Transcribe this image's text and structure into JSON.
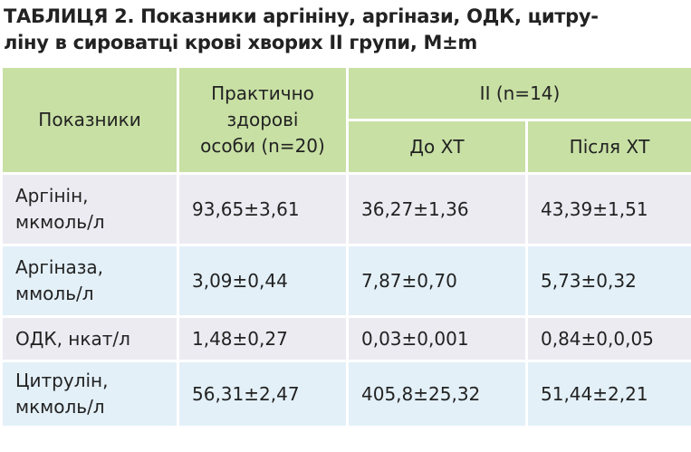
{
  "title": [
    "ТАБЛИЦЯ 2. Показники аргініну, аргінази, ОДК, цитру-",
    "ліну в сироватці крові хворих II групи, M±m"
  ],
  "table": {
    "header": {
      "indicator": "Показники",
      "healthy": [
        "Практично",
        "здорові",
        "особи (n=20)"
      ],
      "group": "II (n=14)",
      "before": "До ХТ",
      "after": "Після ХТ"
    },
    "rows": [
      {
        "label": [
          "Аргінін,",
          "мкмоль/л"
        ],
        "cells": [
          "93,65±3,61",
          "36,27±1,36",
          "43,39±1,51"
        ]
      },
      {
        "label": [
          "Аргіназа,",
          "ммоль/л"
        ],
        "cells": [
          "3,09±0,44",
          "7,87±0,70",
          "5,73±0,32"
        ]
      },
      {
        "label": [
          "ОДК, нкат/л"
        ],
        "cells": [
          "1,48±0,27",
          "0,03±0,001",
          "0,84±0,0,05"
        ]
      },
      {
        "label": [
          "Цитрулін,",
          "мкмоль/л"
        ],
        "cells": [
          "56,31±2,47",
          "405,8±25,32",
          "51,44±2,21"
        ]
      }
    ]
  }
}
